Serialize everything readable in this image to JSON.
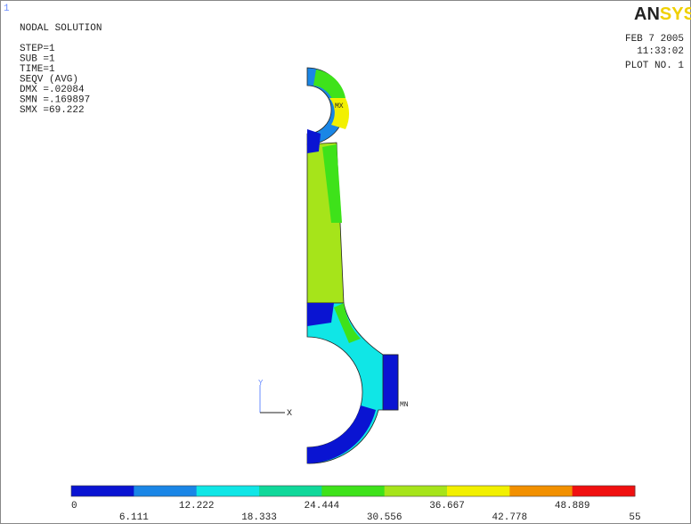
{
  "window_number": "1",
  "info": {
    "title": "NODAL SOLUTION",
    "lines": [
      "STEP=1",
      "SUB =1",
      "TIME=1",
      "SEQV      (AVG)",
      "DMX =.02084",
      "SMN =.169897",
      "SMX =69.222"
    ]
  },
  "logo": {
    "part1": "AN",
    "part2": "SYS"
  },
  "stamp": {
    "date": "FEB  7 2005",
    "time": "11:33:02",
    "plot": "PLOT NO.    1"
  },
  "markers": {
    "max": "MX",
    "min": "MN"
  },
  "triad": {
    "y": "Y",
    "x": "X"
  },
  "legend": {
    "colors": [
      "#0a14d2",
      "#1a86e6",
      "#10e6e6",
      "#10d89a",
      "#3ee21a",
      "#a6e41a",
      "#f2f000",
      "#f29000",
      "#f01010"
    ],
    "labels": [
      "0",
      "6.111",
      "12.222",
      "18.333",
      "24.444",
      "30.556",
      "36.667",
      "42.778",
      "48.889",
      "55"
    ]
  }
}
